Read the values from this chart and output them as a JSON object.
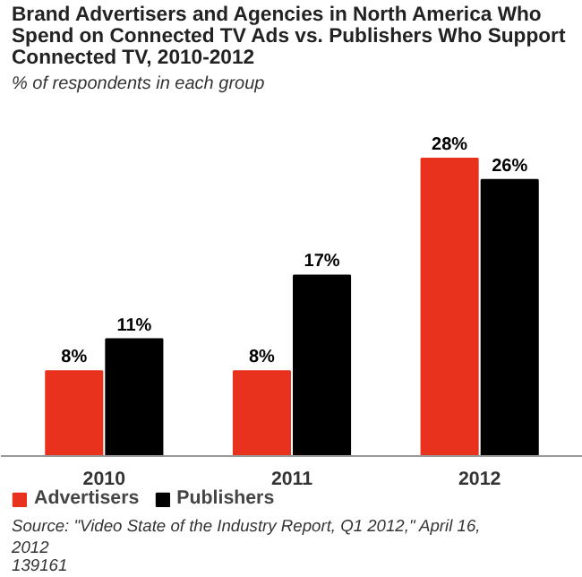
{
  "chart_data": {
    "type": "bar",
    "title": "Brand Advertisers and Agencies in North America Who Spend on Connected TV Ads vs. Publishers Who Support Connected TV, 2010-2012",
    "subtitle": "% of respondents in each group",
    "categories": [
      "2010",
      "2011",
      "2012"
    ],
    "series": [
      {
        "name": "Advertisers",
        "color": "#e8321e",
        "values": [
          8,
          8,
          28
        ],
        "value_labels": [
          "8%",
          "8%",
          "28%"
        ]
      },
      {
        "name": "Publishers",
        "color": "#000000",
        "values": [
          11,
          17,
          26
        ],
        "value_labels": [
          "11%",
          "17%",
          "26%"
        ]
      }
    ],
    "legend": "bottom left",
    "grid": false,
    "annotations": [
      "Source: \"Video State of the Industry Report, Q1 2012,\" April 16, 2012",
      "139161"
    ]
  }
}
